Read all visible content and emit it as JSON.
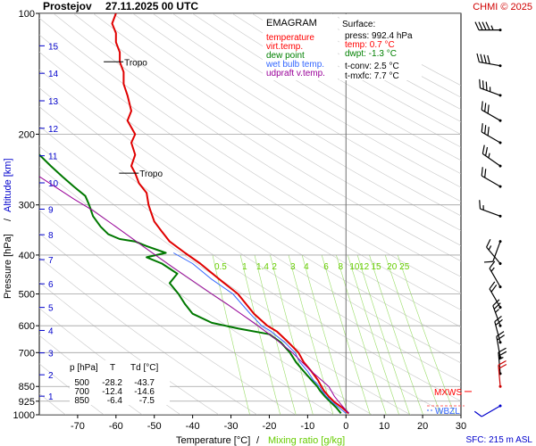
{
  "header": {
    "station": "Prostejov",
    "datetime": "27.11.2025 00 UTC",
    "credit": "CHMI © 2025"
  },
  "legend": {
    "title": "EMAGRAM",
    "items": [
      {
        "label": "temperature",
        "color": "#ff0000"
      },
      {
        "label": "virt.temp.",
        "color": "#ff0000"
      },
      {
        "label": "dew point",
        "color": "#008000"
      },
      {
        "label": "wet bulb temp.",
        "color": "#3366ff"
      },
      {
        "label": "udpraft v.temp.",
        "color": "#990099"
      }
    ]
  },
  "surface": {
    "title": "Surface:",
    "press": "press: 992.4 hPa",
    "temp": "temp: 0.7 °C",
    "dwpt": "dwpt: -1.3 °C",
    "tconv": "t-conv: 2.5 °C",
    "tmxfc": "t-mxfc: 7.7 °C",
    "temp_color": "#ff0000",
    "dwpt_color": "#008000"
  },
  "table": {
    "headers": [
      "p [hPa]",
      "T",
      "Td [°C]"
    ],
    "rows": [
      [
        "500",
        "-28.2",
        "-43.7"
      ],
      [
        "700",
        "-12.4",
        "-14.6"
      ],
      [
        "850",
        "-6.4",
        "-7.5"
      ]
    ]
  },
  "footer": {
    "sfc": "SFC: 215 m ASL"
  },
  "levels": {
    "mxws": "MXWS",
    "wbzl": "WBZL",
    "tropo": "Tropo"
  },
  "chart_data": {
    "type": "line",
    "xlabel_temp": "Temperature [°C]",
    "xlabel_sep": "/",
    "xlabel_mix": "Mixing ratio [g/kg]",
    "ylabel_pressure": "Pressure [hPa]",
    "ylabel_sep": "/",
    "ylabel_alt": "Altitude [km]",
    "x_ticks": [
      -70,
      -60,
      -50,
      -40,
      -30,
      -20,
      -10,
      0,
      10,
      20,
      30
    ],
    "y_ticks": [
      100,
      200,
      300,
      400,
      500,
      600,
      700,
      850,
      925,
      1000
    ],
    "altitude_ticks_km": [
      1,
      2,
      3,
      4,
      5,
      6,
      7,
      8,
      9,
      10,
      11,
      12,
      13,
      14,
      15
    ],
    "mixing_ratio_labels": [
      "0.5",
      "1",
      "1.4",
      "2",
      "3",
      "4",
      "6",
      "8",
      "10",
      "12",
      "15",
      "20",
      "25"
    ],
    "xlim": [
      -80,
      30
    ],
    "ylim": [
      100,
      1000
    ],
    "grid": true,
    "tropopause_hpa": [
      132,
      250
    ],
    "series": [
      {
        "name": "temperature",
        "color": "#e00000",
        "points": [
          [
            0.7,
            992
          ],
          [
            -1,
            960
          ],
          [
            -3,
            930
          ],
          [
            -4.5,
            900
          ],
          [
            -5.8,
            870
          ],
          [
            -6.4,
            850
          ],
          [
            -7.3,
            820
          ],
          [
            -9,
            780
          ],
          [
            -11,
            740
          ],
          [
            -12.4,
            700
          ],
          [
            -15,
            660
          ],
          [
            -18,
            620
          ],
          [
            -20.5,
            600
          ],
          [
            -24,
            560
          ],
          [
            -28.2,
            500
          ],
          [
            -33,
            460
          ],
          [
            -38,
            420
          ],
          [
            -42,
            395
          ],
          [
            -46,
            370
          ],
          [
            -48,
            350
          ],
          [
            -50,
            330
          ],
          [
            -51,
            310
          ],
          [
            -51.5,
            300
          ],
          [
            -52,
            280
          ],
          [
            -54,
            265
          ],
          [
            -55,
            250
          ],
          [
            -56,
            240
          ],
          [
            -55,
            225
          ],
          [
            -56,
            210
          ],
          [
            -55,
            200
          ],
          [
            -57,
            185
          ],
          [
            -56,
            175
          ],
          [
            -57,
            160
          ],
          [
            -58,
            150
          ],
          [
            -58,
            140
          ],
          [
            -59,
            132
          ],
          [
            -59,
            125
          ],
          [
            -60,
            118
          ],
          [
            -60,
            112
          ],
          [
            -61,
            106
          ],
          [
            -60,
            100
          ]
        ]
      },
      {
        "name": "dew point",
        "color": "#007800",
        "points": [
          [
            -1.3,
            992
          ],
          [
            -2.5,
            960
          ],
          [
            -4,
            930
          ],
          [
            -5.5,
            900
          ],
          [
            -6.8,
            870
          ],
          [
            -7.5,
            850
          ],
          [
            -9,
            820
          ],
          [
            -11,
            780
          ],
          [
            -13,
            740
          ],
          [
            -14.6,
            700
          ],
          [
            -17,
            660
          ],
          [
            -20,
            630
          ],
          [
            -28,
            610
          ],
          [
            -35,
            590
          ],
          [
            -40,
            560
          ],
          [
            -42,
            530
          ],
          [
            -43.7,
            500
          ],
          [
            -46,
            470
          ],
          [
            -44,
            445
          ],
          [
            -48,
            420
          ],
          [
            -52,
            405
          ],
          [
            -47,
            395
          ],
          [
            -52,
            380
          ],
          [
            -55,
            370
          ],
          [
            -59,
            365
          ],
          [
            -62,
            355
          ],
          [
            -64,
            340
          ],
          [
            -66,
            320
          ],
          [
            -67,
            300
          ],
          [
            -68,
            285
          ],
          [
            -71,
            270
          ],
          [
            -74,
            255
          ],
          [
            -77,
            240
          ],
          [
            -80,
            225
          ]
        ]
      },
      {
        "name": "wet bulb temp.",
        "color": "#3366ff",
        "points": [
          [
            0,
            992
          ],
          [
            -1.8,
            960
          ],
          [
            -3.6,
            930
          ],
          [
            -5.1,
            900
          ],
          [
            -6.3,
            870
          ],
          [
            -6.9,
            850
          ],
          [
            -8.5,
            820
          ],
          [
            -10,
            780
          ],
          [
            -12,
            740
          ],
          [
            -13.3,
            700
          ],
          [
            -16,
            660
          ],
          [
            -19.5,
            620
          ],
          [
            -22,
            600
          ],
          [
            -25,
            560
          ],
          [
            -29.5,
            500
          ],
          [
            -35,
            460
          ],
          [
            -40,
            420
          ],
          [
            -45,
            395
          ]
        ]
      },
      {
        "name": "udpraft v.temp.",
        "color": "#990099",
        "points": [
          [
            0.8,
            992
          ],
          [
            -1,
            950
          ],
          [
            -3,
            900
          ],
          [
            -4.5,
            850
          ],
          [
            -9,
            780
          ],
          [
            -14,
            700
          ],
          [
            -19,
            640
          ],
          [
            -23,
            600
          ],
          [
            -31,
            530
          ],
          [
            -35,
            500
          ],
          [
            -45,
            430
          ],
          [
            -53,
            380
          ],
          [
            -60,
            340
          ],
          [
            -66,
            310
          ],
          [
            -71,
            290
          ],
          [
            -76,
            270
          ],
          [
            -80,
            255
          ]
        ]
      }
    ],
    "wind_barbs": [
      {
        "p": 110,
        "dir": 270,
        "kt": 45
      },
      {
        "p": 135,
        "dir": 280,
        "kt": 40
      },
      {
        "p": 160,
        "dir": 290,
        "kt": 35
      },
      {
        "p": 185,
        "dir": 300,
        "kt": 30
      },
      {
        "p": 210,
        "dir": 300,
        "kt": 30
      },
      {
        "p": 240,
        "dir": 305,
        "kt": 25
      },
      {
        "p": 270,
        "dir": 300,
        "kt": 20
      },
      {
        "p": 320,
        "dir": 290,
        "kt": 15
      },
      {
        "p": 370,
        "dir": 200,
        "kt": 10
      },
      {
        "p": 420,
        "dir": 320,
        "kt": 15
      },
      {
        "p": 480,
        "dir": 330,
        "kt": 15
      },
      {
        "p": 540,
        "dir": 330,
        "kt": 20
      },
      {
        "p": 600,
        "dir": 340,
        "kt": 25
      },
      {
        "p": 660,
        "dir": 345,
        "kt": 20
      },
      {
        "p": 720,
        "dir": 350,
        "kt": 20
      },
      {
        "p": 790,
        "dir": 355,
        "kt": 25
      },
      {
        "p": 850,
        "dir": 355,
        "kt": 20
      },
      {
        "p": 950,
        "dir": 240,
        "kt": 10
      }
    ]
  }
}
